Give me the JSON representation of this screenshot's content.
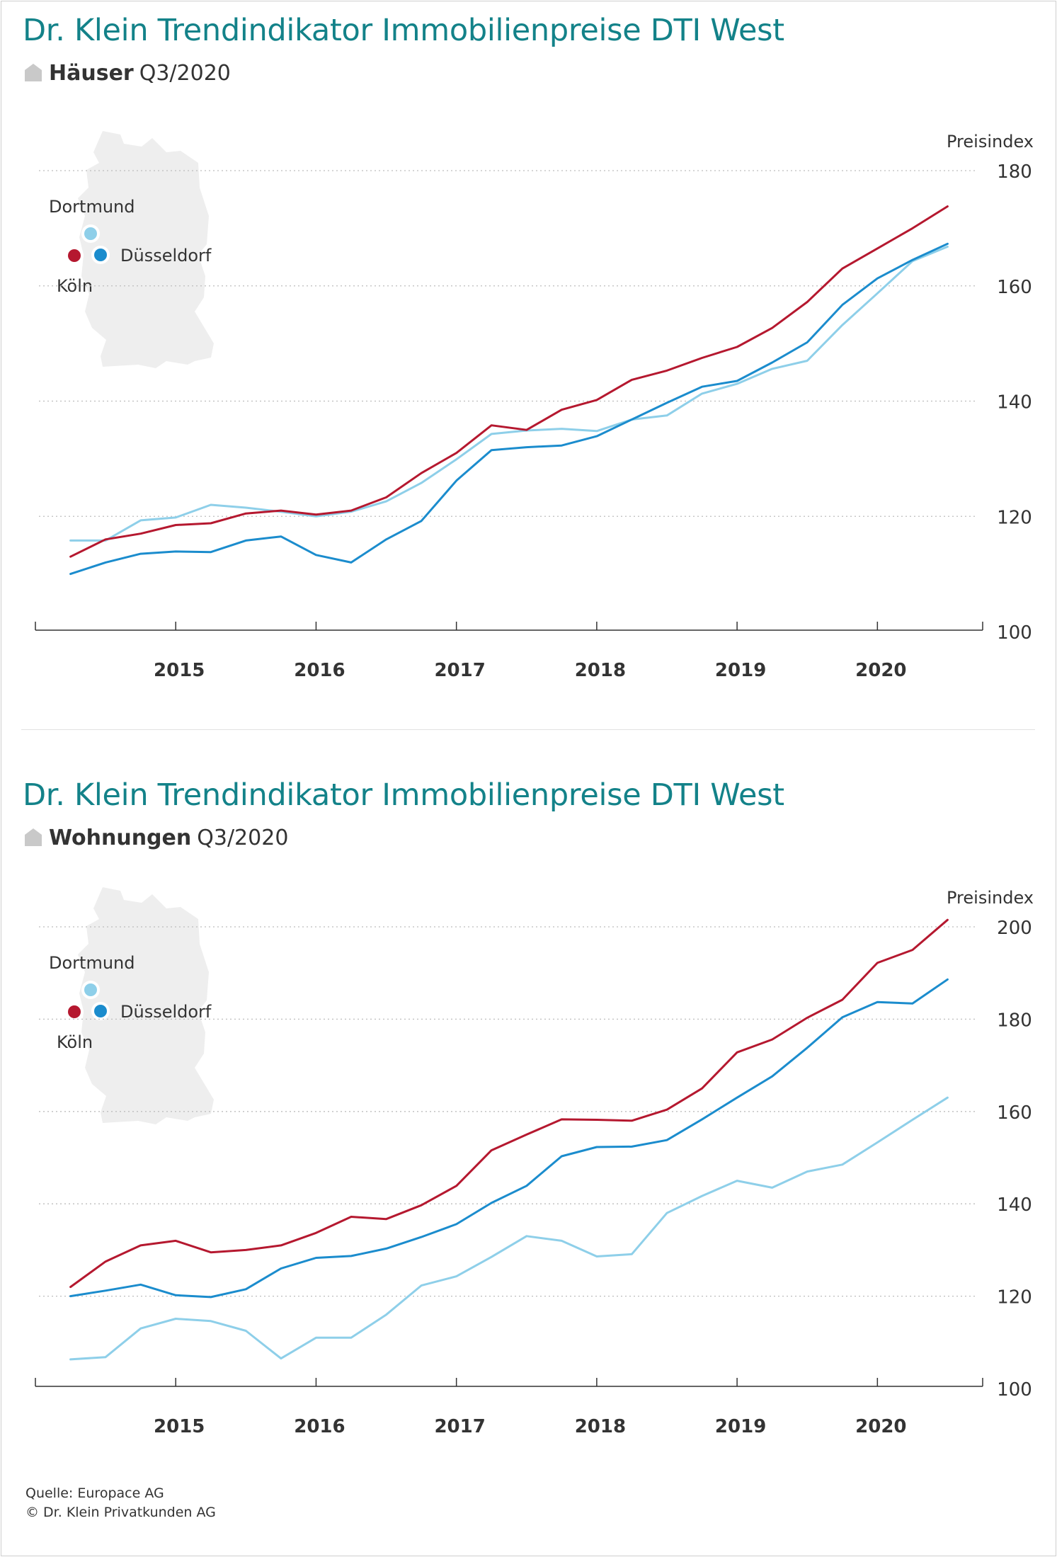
{
  "colors": {
    "title": "#138289",
    "koeln": "#b5182f",
    "duesseldorf": "#1b8ccd",
    "dortmund": "#8ecfe9",
    "map": "#eeeeee",
    "grid": "#bdbdbd",
    "axis": "#333333"
  },
  "panels": [
    {
      "title": "Dr. Klein Trendindikator Immobilienpreise DTI West",
      "subtitle_bold": "Häuser",
      "subtitle_period": "Q3/2020",
      "map_icon": "germany-map-icon",
      "map_labels": {
        "dortmund": "Dortmund",
        "duesseldorf": "Düsseldorf",
        "koeln": "Köln"
      }
    },
    {
      "title": "Dr. Klein Trendindikator Immobilienpreise DTI West",
      "subtitle_bold": "Wohnungen",
      "subtitle_period": "Q3/2020",
      "map_icon": "germany-map-icon",
      "map_labels": {
        "dortmund": "Dortmund",
        "duesseldorf": "Düsseldorf",
        "koeln": "Köln"
      }
    }
  ],
  "chart_data": [
    {
      "type": "line",
      "title": "Dr. Klein Trendindikator Immobilienpreise DTI West",
      "subtitle": "Häuser Q3/2020",
      "ylabel": "Preisindex",
      "xlim": [
        2014.0,
        2020.75
      ],
      "ylim": [
        100,
        180
      ],
      "yticks": [
        100,
        120,
        140,
        160,
        180
      ],
      "xticks": [
        2015,
        2016,
        2017,
        2018,
        2019,
        2020
      ],
      "grid": "horizontal dotted",
      "x": [
        2014.25,
        2014.5,
        2014.75,
        2015.0,
        2015.25,
        2015.5,
        2015.75,
        2016.0,
        2016.25,
        2016.5,
        2016.75,
        2017.0,
        2017.25,
        2017.5,
        2017.75,
        2018.0,
        2018.25,
        2018.5,
        2018.75,
        2019.0,
        2019.25,
        2019.5,
        2019.75,
        2020.0,
        2020.25,
        2020.5
      ],
      "series": [
        {
          "name": "Köln",
          "color": "#b5182f",
          "values": [
            113.0,
            116.0,
            117.0,
            118.5,
            118.8,
            120.5,
            121.0,
            120.3,
            121.0,
            123.3,
            127.5,
            131.0,
            135.8,
            135.0,
            138.5,
            140.2,
            143.7,
            145.3,
            147.5,
            149.4,
            152.7,
            157.2,
            163.0,
            166.5,
            170.0,
            173.8
          ]
        },
        {
          "name": "Düsseldorf",
          "color": "#1b8ccd",
          "values": [
            110.0,
            112.0,
            113.5,
            113.9,
            113.8,
            115.8,
            116.5,
            113.3,
            112.0,
            116.0,
            119.2,
            126.2,
            131.5,
            132.0,
            132.3,
            133.9,
            136.8,
            139.7,
            142.5,
            143.5,
            146.7,
            150.2,
            156.7,
            161.3,
            164.5,
            167.3
          ]
        },
        {
          "name": "Dortmund",
          "color": "#8ecfe9",
          "values": [
            115.8,
            115.8,
            119.3,
            119.8,
            122.0,
            121.5,
            120.8,
            120.0,
            120.8,
            122.6,
            125.8,
            129.9,
            134.3,
            134.9,
            135.2,
            134.8,
            136.8,
            137.5,
            141.3,
            143.0,
            145.6,
            147.0,
            153.2,
            158.7,
            164.3,
            166.8
          ]
        }
      ]
    },
    {
      "type": "line",
      "title": "Dr. Klein Trendindikator Immobilienpreise DTI West",
      "subtitle": "Wohnungen Q3/2020",
      "ylabel": "Preisindex",
      "xlim": [
        2014.0,
        2020.75
      ],
      "ylim": [
        100,
        200
      ],
      "yticks": [
        100,
        120,
        140,
        160,
        180,
        200
      ],
      "xticks": [
        2015,
        2016,
        2017,
        2018,
        2019,
        2020
      ],
      "grid": "horizontal dotted",
      "x": [
        2014.25,
        2014.5,
        2014.75,
        2015.0,
        2015.25,
        2015.5,
        2015.75,
        2016.0,
        2016.25,
        2016.5,
        2016.75,
        2017.0,
        2017.25,
        2017.5,
        2017.75,
        2018.0,
        2018.25,
        2018.5,
        2018.75,
        2019.0,
        2019.25,
        2019.5,
        2019.75,
        2020.0,
        2020.25,
        2020.5
      ],
      "series": [
        {
          "name": "Köln",
          "color": "#b5182f",
          "values": [
            122.0,
            127.5,
            131.0,
            132.0,
            129.5,
            130.0,
            131.0,
            133.7,
            137.2,
            136.7,
            139.7,
            143.9,
            151.6,
            155.0,
            158.3,
            158.2,
            158.0,
            160.4,
            165.0,
            172.8,
            175.6,
            180.3,
            184.2,
            192.2,
            195.0,
            201.5
          ]
        },
        {
          "name": "Düsseldorf",
          "color": "#1b8ccd",
          "values": [
            120.0,
            121.2,
            122.5,
            120.2,
            119.8,
            121.5,
            126.0,
            128.3,
            128.7,
            130.3,
            132.8,
            135.6,
            140.2,
            143.9,
            150.3,
            152.3,
            152.4,
            153.8,
            158.3,
            163.0,
            167.6,
            173.8,
            180.4,
            183.7,
            183.4,
            188.6
          ]
        },
        {
          "name": "Dortmund",
          "color": "#8ecfe9",
          "values": [
            106.3,
            106.8,
            113.0,
            115.1,
            114.6,
            112.5,
            106.5,
            111.0,
            111.0,
            116.0,
            122.3,
            124.3,
            128.5,
            133.0,
            132.0,
            128.6,
            129.1,
            138.0,
            141.7,
            145.0,
            143.5,
            147.0,
            148.5,
            153.3,
            158.2,
            163.0
          ]
        }
      ]
    }
  ],
  "source_line1": "Quelle: Europace AG",
  "source_line2": "© Dr. Klein Privatkunden AG"
}
